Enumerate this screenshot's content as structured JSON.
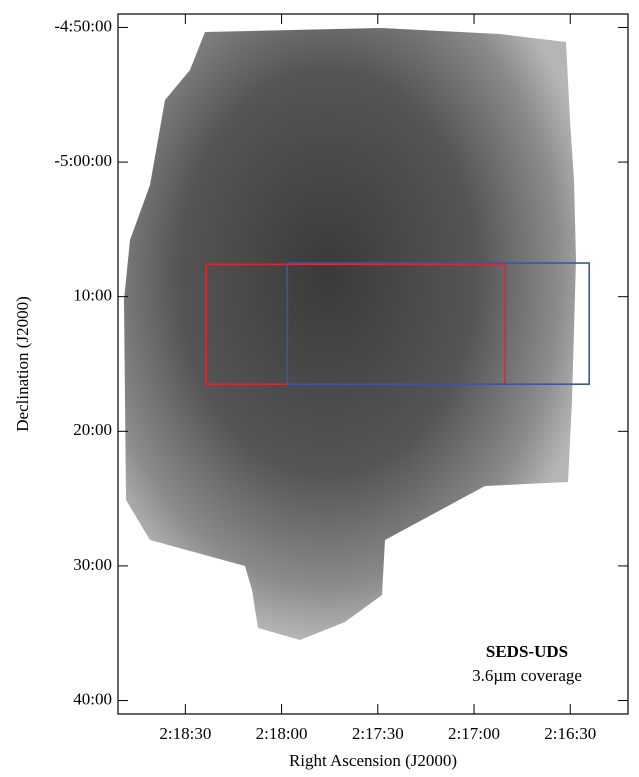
{
  "chart_data": {
    "type": "coverage-map",
    "annotations": [
      "SEDS-UDS",
      "3.6µm coverage"
    ],
    "x_label": "Right Ascension (J2000)",
    "y_label": "Declination (J2000)",
    "xlim": [
      8331,
      8172
    ],
    "ylim": [
      -341,
      -289
    ],
    "xticks": [
      {
        "value": 8310,
        "label": "2:18:30"
      },
      {
        "value": 8280,
        "label": "2:18:00"
      },
      {
        "value": 8250,
        "label": "2:17:30"
      },
      {
        "value": 8220,
        "label": "2:17:00"
      },
      {
        "value": 8190,
        "label": "2:16:30"
      }
    ],
    "yticks": [
      {
        "value": -290,
        "label": "-4:50:00"
      },
      {
        "value": -300,
        "label": "-5:00:00"
      },
      {
        "value": -310,
        "label": "10:00"
      },
      {
        "value": -320,
        "label": "20:00"
      },
      {
        "value": -330,
        "label": "30:00"
      },
      {
        "value": -340,
        "label": "40:00"
      }
    ],
    "regions": [
      {
        "color": "#e0262b",
        "x": [
          8303.5,
          8210.3
        ],
        "y": [
          -316.5,
          -307.6
        ]
      },
      {
        "color": "#3a56a8",
        "x": [
          8278.2,
          8184.1
        ],
        "y": [
          -316.5,
          -307.5
        ]
      }
    ]
  }
}
